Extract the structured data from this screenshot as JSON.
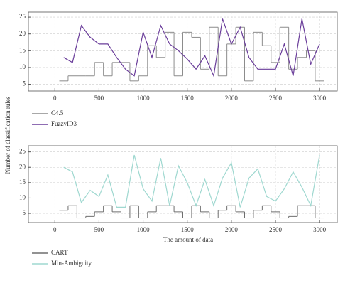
{
  "chart_data": [
    {
      "type": "line",
      "ylabel": "Number of classification rules",
      "x": [
        100,
        200,
        300,
        400,
        500,
        600,
        700,
        800,
        900,
        1000,
        1100,
        1200,
        1300,
        1400,
        1500,
        1600,
        1700,
        1800,
        1900,
        2000,
        2100,
        2200,
        2300,
        2400,
        2500,
        2600,
        2700,
        2800,
        2900,
        3000
      ],
      "series": [
        {
          "name": "C4.5",
          "color": "#8c8c8c",
          "drawstyle": "steps",
          "values": [
            6,
            7.5,
            7.5,
            7.5,
            11.5,
            7.5,
            11.5,
            11.5,
            6,
            7.5,
            16.5,
            13,
            20.5,
            7.5,
            20.5,
            19,
            9.5,
            22,
            7.5,
            17,
            22,
            6,
            20.5,
            16.5,
            11.5,
            22,
            9.5,
            13,
            15,
            6
          ]
        },
        {
          "name": "FuzzyID3",
          "color": "#6a3d9a",
          "drawstyle": "line",
          "values": [
            13,
            11.5,
            22.5,
            19,
            17,
            17,
            13,
            9.5,
            7.5,
            20.5,
            13,
            22.5,
            17,
            15,
            12.5,
            9.5,
            13.5,
            7.5,
            24.5,
            17,
            22,
            13,
            9.5,
            9.5,
            9.5,
            17,
            7.5,
            24.5,
            11,
            17
          ]
        }
      ],
      "xlim": [
        -300,
        3200
      ],
      "xticks": [
        0,
        500,
        1000,
        1500,
        2000,
        2500,
        3000
      ],
      "ylim": [
        3,
        26.5
      ],
      "yticks": [
        5,
        10,
        15,
        20,
        25
      ],
      "grid": true
    },
    {
      "type": "line",
      "xlabel": "The amount of data",
      "x": [
        100,
        200,
        300,
        400,
        500,
        600,
        700,
        800,
        900,
        1000,
        1100,
        1200,
        1300,
        1400,
        1500,
        1600,
        1700,
        1800,
        1900,
        2000,
        2100,
        2200,
        2300,
        2400,
        2500,
        2600,
        2700,
        2800,
        2900,
        3000
      ],
      "series": [
        {
          "name": "CART",
          "color": "#6e6e6e",
          "drawstyle": "steps",
          "values": [
            6,
            7.5,
            3.5,
            4,
            5.5,
            7.5,
            5.5,
            3.5,
            7.5,
            3.5,
            5.5,
            7.5,
            7.5,
            5.5,
            3.5,
            7.5,
            5.5,
            3.5,
            6,
            7.5,
            5.5,
            3.5,
            6,
            7.5,
            5.5,
            3.5,
            4,
            7.5,
            7.5,
            3.5
          ]
        },
        {
          "name": "Min-Ambiguity",
          "color": "#9fd8d0",
          "drawstyle": "line",
          "values": [
            20,
            18.5,
            8.5,
            12.5,
            10.5,
            17.5,
            7,
            7,
            24,
            13,
            9,
            23,
            7.5,
            20.5,
            15,
            7.5,
            16,
            7.5,
            16.5,
            21.5,
            7,
            16.5,
            19.5,
            10.5,
            9,
            13,
            18.5,
            13.5,
            7.5,
            24
          ]
        }
      ],
      "xlim": [
        -300,
        3200
      ],
      "xticks": [
        0,
        500,
        1000,
        1500,
        2000,
        2500,
        3000
      ],
      "ylim": [
        2,
        27
      ],
      "yticks": [
        5,
        10,
        15,
        20,
        25
      ],
      "grid": true
    }
  ]
}
